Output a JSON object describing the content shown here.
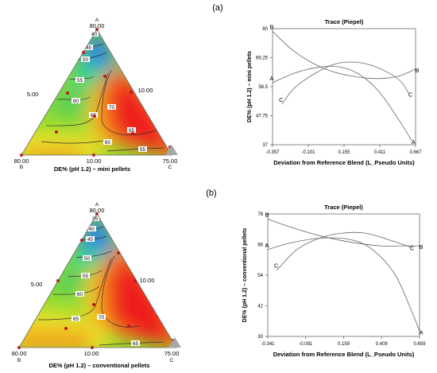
{
  "panels": [
    {
      "label": "(a)",
      "ternary": {
        "title": "DE% (pH 1.2) – mini pellets",
        "vertices": {
          "A": {
            "letter": "A",
            "value": "80.00"
          },
          "B": {
            "letter": "B",
            "value": "80.00"
          },
          "C": {
            "letter": "C",
            "value": "75.00"
          }
        },
        "side_labels": {
          "left": "5.00",
          "bottom": "10.00",
          "right": "10.00"
        },
        "contours": [
          "40",
          "45",
          "50",
          "55",
          "60",
          "65",
          "70",
          "65",
          "60",
          "55"
        ]
      },
      "trace": {
        "title": "Trace (Piepel)",
        "xlabel": "Deviation from Reference Blend (L_Pseudo Units)",
        "ylabel": "DE% (pH 1.2) – mini pellets",
        "xticks": [
          "-0.357",
          "-0.101",
          "0.155",
          "0.411",
          "0.667"
        ],
        "yticks": [
          "37",
          "47.75",
          "58.5",
          "69.25",
          "80"
        ]
      }
    },
    {
      "label": "(b)",
      "ternary": {
        "title": "DE% (pH 1.2) – conventional pellets",
        "vertices": {
          "A": {
            "letter": "A",
            "value": "80.00"
          },
          "B": {
            "letter": "B",
            "value": "80.00"
          },
          "C": {
            "letter": "C",
            "value": "75.00"
          }
        },
        "side_labels": {
          "left": "5.00",
          "bottom": "10.00",
          "right": "10.00"
        },
        "contours": [
          "35",
          "40",
          "45",
          "50",
          "55",
          "60",
          "65",
          "70",
          "65"
        ]
      },
      "trace": {
        "title": "Trace (Piepel)",
        "xlabel": "Deviation from Reference Blend (L_Pseudo Units)",
        "ylabel": "DE% (pH 1.2) – conventional pellets",
        "xticks": [
          "-0.341",
          "-0.091",
          "0.159",
          "0.409",
          "0.659"
        ],
        "yticks": [
          "30",
          "42",
          "54",
          "66",
          "78"
        ]
      }
    }
  ],
  "chart_data": [
    {
      "type": "line",
      "title": "Trace (Piepel)",
      "xlabel": "Deviation from Reference Blend (L_Pseudo Units)",
      "ylabel": "DE% (pH 1.2) – mini pellets",
      "xlim": [
        -0.357,
        0.667
      ],
      "ylim": [
        37,
        80
      ],
      "series": [
        {
          "name": "A",
          "x": [
            -0.357,
            -0.2,
            -0.05,
            0.1,
            0.25,
            0.4,
            0.55,
            0.64
          ],
          "y": [
            60,
            63.5,
            65.5,
            66,
            63.5,
            57,
            46,
            38.5
          ]
        },
        {
          "name": "B",
          "x": [
            -0.357,
            -0.2,
            0,
            0.2,
            0.4,
            0.55,
            0.667
          ],
          "y": [
            79,
            71.5,
            65.5,
            62.5,
            61.5,
            62.5,
            65
          ]
        },
        {
          "name": "C",
          "x": [
            -0.29,
            -0.2,
            -0.05,
            0.1,
            0.25,
            0.4,
            0.55,
            0.62
          ],
          "y": [
            52,
            58,
            63.5,
            67,
            67.5,
            65.5,
            61,
            56
          ]
        }
      ]
    },
    {
      "type": "line",
      "title": "Trace (Piepel)",
      "xlabel": "Deviation from Reference Blend (L_Pseudo Units)",
      "ylabel": "DE% (pH 1.2) – conventional pellets",
      "xlim": [
        -0.341,
        0.659
      ],
      "ylim": [
        30,
        78
      ],
      "series": [
        {
          "name": "A",
          "x": [
            -0.341,
            -0.2,
            0,
            0.2,
            0.35,
            0.5,
            0.62,
            0.659
          ],
          "y": [
            64,
            66.5,
            68.5,
            68,
            64,
            54,
            38,
            32
          ]
        },
        {
          "name": "B",
          "x": [
            -0.341,
            -0.2,
            0,
            0.2,
            0.4,
            0.55,
            0.659
          ],
          "y": [
            76,
            73,
            69.5,
            67,
            65.5,
            65.5,
            65.5
          ]
        },
        {
          "name": "C",
          "x": [
            -0.28,
            -0.15,
            0,
            0.15,
            0.3,
            0.45,
            0.6
          ],
          "y": [
            56,
            64,
            68.5,
            70.5,
            70.5,
            68,
            65
          ]
        }
      ]
    }
  ]
}
